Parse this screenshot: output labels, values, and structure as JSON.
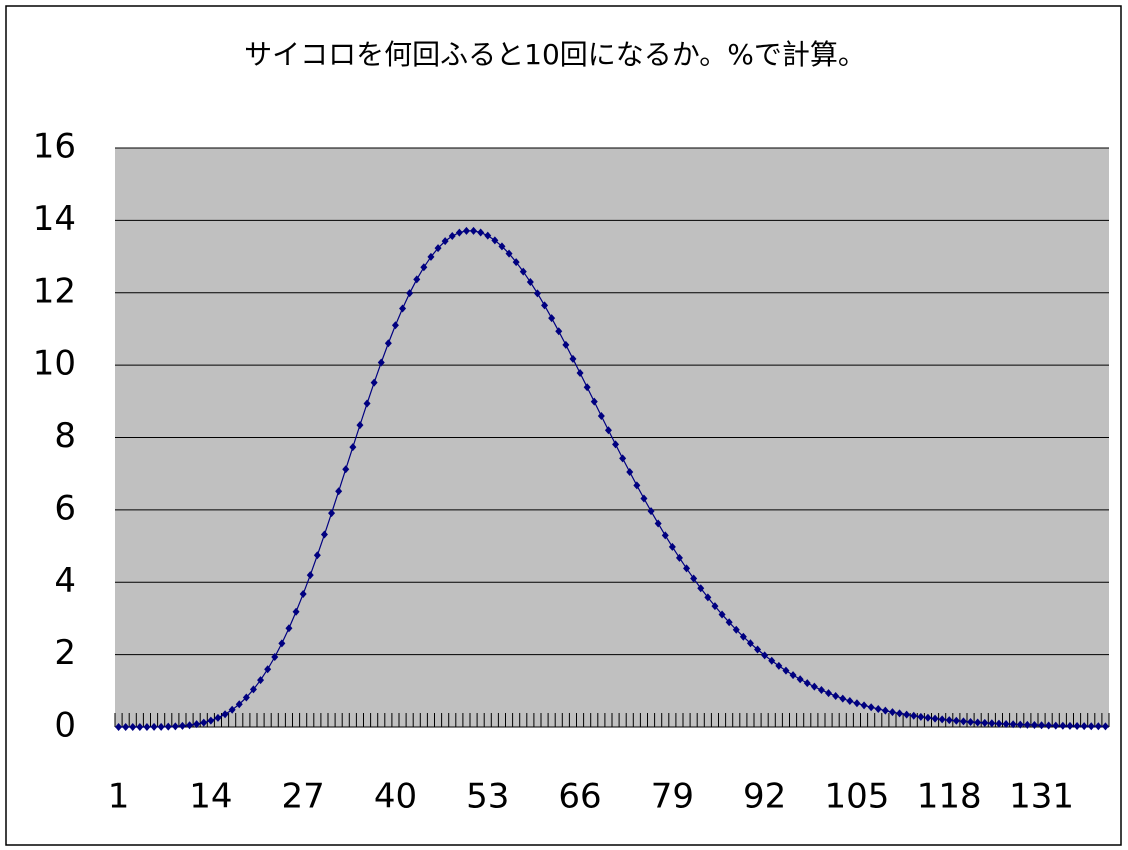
{
  "chart_data": {
    "type": "line",
    "title": "サイコロを何回ふると10回になるか。%で計算。",
    "categories": [
      1,
      null,
      null,
      null,
      null,
      null,
      null,
      null,
      null,
      null,
      null,
      null,
      null,
      14,
      null,
      null,
      null,
      null,
      null,
      null,
      null,
      null,
      null,
      null,
      null,
      null,
      27,
      null,
      null,
      null,
      null,
      null,
      null,
      null,
      null,
      null,
      null,
      null,
      null,
      40,
      null,
      null,
      null,
      null,
      null,
      null,
      null,
      null,
      null,
      null,
      null,
      null,
      53,
      null,
      null,
      null,
      null,
      null,
      null,
      null,
      null,
      null,
      null,
      null,
      null,
      66,
      null,
      null,
      null,
      null,
      null,
      null,
      null,
      null,
      null,
      null,
      null,
      null,
      79,
      null,
      null,
      null,
      null,
      null,
      null,
      null,
      null,
      null,
      null,
      null,
      null,
      92,
      null,
      null,
      null,
      null,
      null,
      null,
      null,
      null,
      null,
      null,
      null,
      null,
      105,
      null,
      null,
      null,
      null,
      null,
      null,
      null,
      null,
      null,
      null,
      null,
      null,
      118,
      null,
      null,
      null,
      null,
      null,
      null,
      null,
      null,
      null,
      null,
      null,
      null,
      131,
      null,
      null,
      null,
      null,
      null,
      null,
      null,
      null,
      null
    ],
    "values": [
      1.7e-06,
      1.5e-05,
      7.6e-05,
      0.00027,
      0.0008,
      0.002,
      0.00445,
      0.009,
      0.0168,
      0.0296,
      0.0494,
      0.0785,
      0.12,
      0.177,
      0.253,
      0.351,
      0.475,
      0.629,
      0.816,
      1.038,
      1.297,
      1.596,
      1.934,
      2.312,
      2.729,
      3.184,
      3.674,
      4.196,
      4.745,
      5.318,
      5.909,
      6.513,
      7.123,
      7.735,
      8.342,
      8.938,
      9.517,
      10.074,
      10.604,
      11.102,
      11.565,
      11.988,
      12.368,
      12.704,
      12.993,
      13.234,
      13.426,
      13.569,
      13.663,
      13.71,
      13.71,
      13.665,
      13.577,
      13.449,
      13.283,
      13.082,
      12.848,
      12.585,
      12.296,
      11.983,
      11.65,
      11.3,
      10.935,
      10.559,
      10.174,
      9.783,
      9.388,
      8.991,
      8.594,
      8.2,
      7.809,
      7.424,
      7.046,
      6.676,
      6.315,
      5.964,
      5.624,
      5.295,
      4.978,
      4.674,
      4.382,
      4.102,
      3.835,
      3.581,
      3.339,
      3.11,
      2.893,
      2.688,
      2.495,
      2.313,
      2.142,
      1.981,
      1.83,
      1.689,
      1.557,
      1.434,
      1.319,
      1.213,
      1.114,
      1.022,
      0.937,
      0.858,
      0.785,
      0.718,
      0.656,
      0.599,
      0.546,
      0.498,
      0.453,
      0.412,
      0.375,
      0.341,
      0.31,
      0.281,
      0.255,
      0.231,
      0.209,
      0.189,
      0.171,
      0.154,
      0.139,
      0.125,
      0.113,
      0.102,
      0.092,
      0.083,
      0.075,
      0.067,
      0.06,
      0.054,
      0.048,
      0.043,
      0.039,
      0.035,
      0.031,
      0.028,
      0.025,
      0.022,
      0.02,
      0.018
    ],
    "color": "#000080",
    "ylim": [
      0,
      16
    ],
    "yticks": [
      0,
      2,
      4,
      6,
      8,
      10,
      12,
      14,
      16
    ],
    "grid": true
  }
}
